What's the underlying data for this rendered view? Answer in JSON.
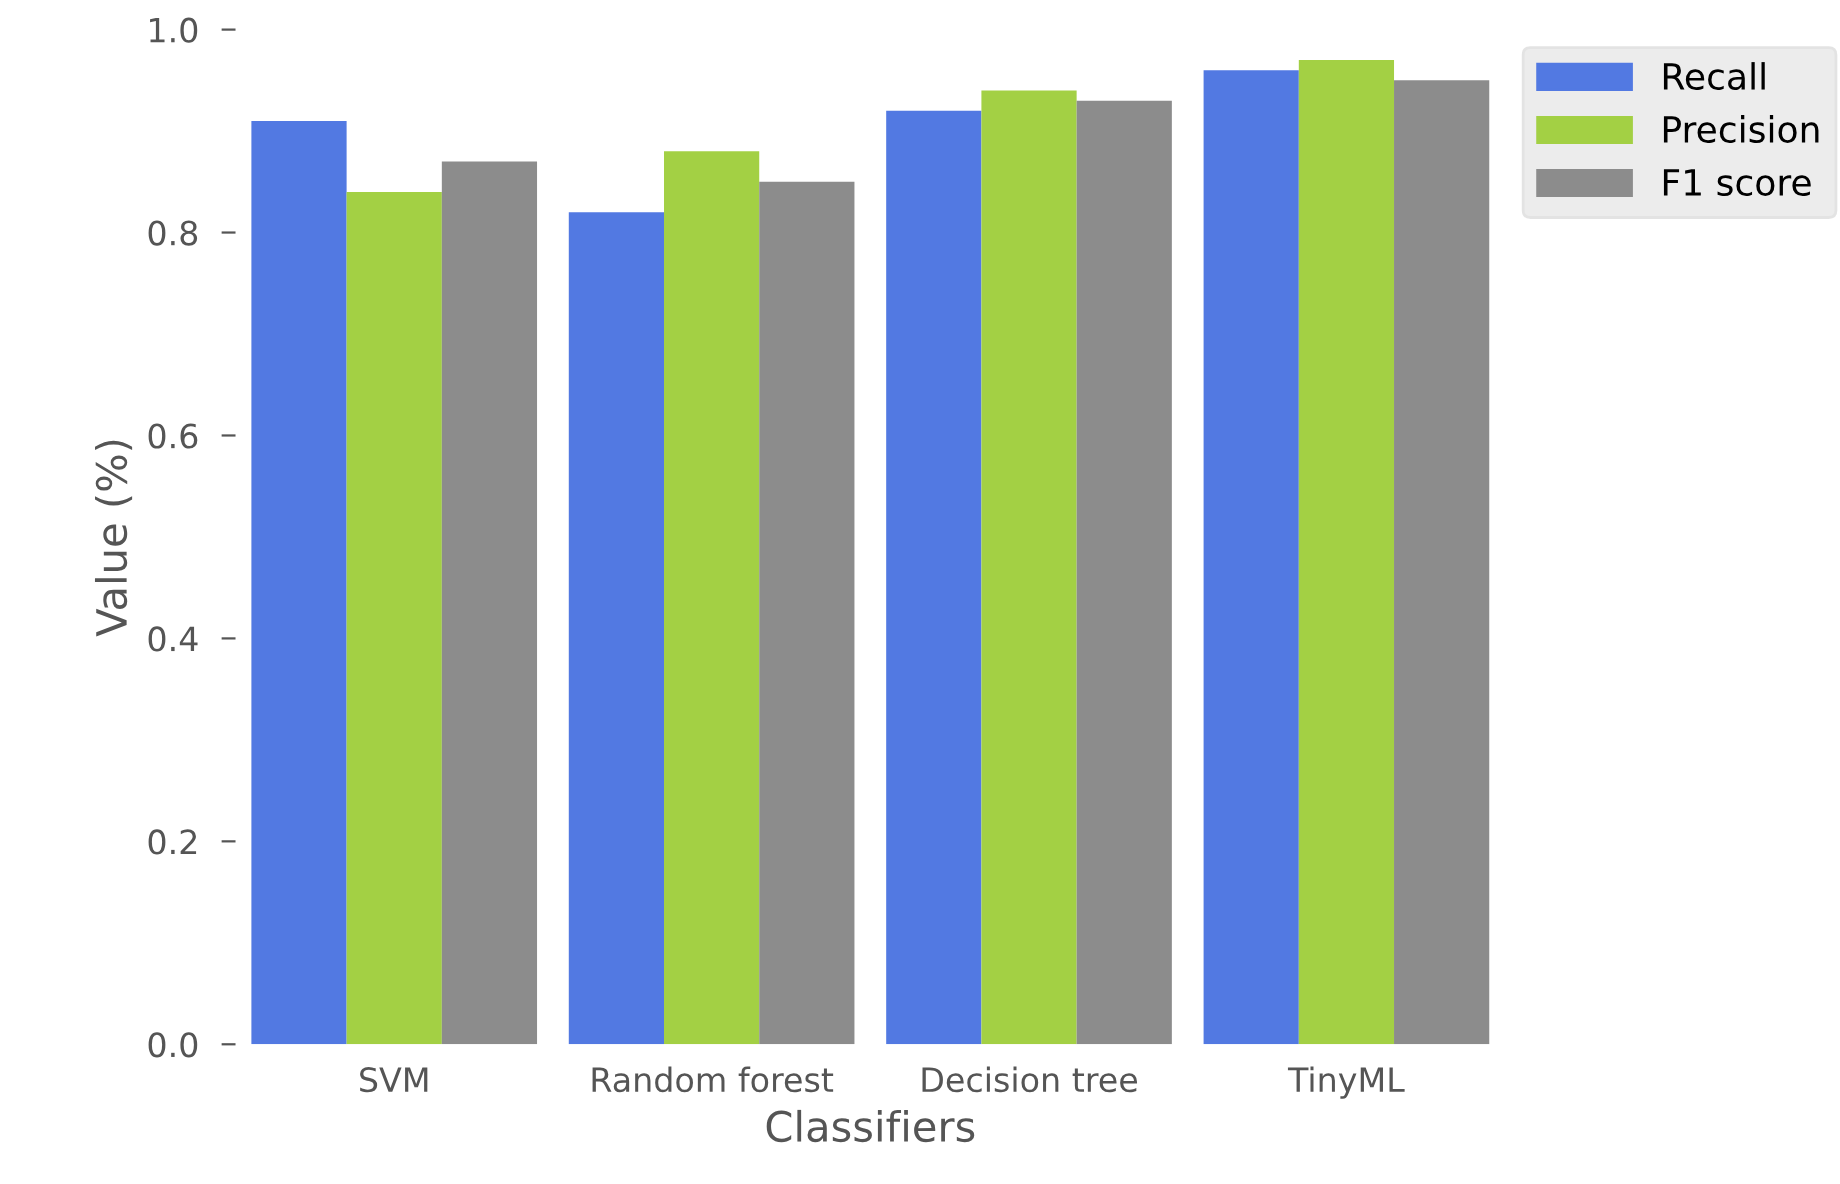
{
  "chart_data": {
    "type": "bar",
    "xlabel": "Classifiers",
    "ylabel": "Value (%)",
    "categories": [
      "SVM",
      "Random forest",
      "Decision tree",
      "TinyML"
    ],
    "series": [
      {
        "name": "Recall",
        "color": "#5279e2",
        "values": [
          0.91,
          0.82,
          0.92,
          0.96
        ]
      },
      {
        "name": "Precision",
        "color": "#a3d044",
        "values": [
          0.84,
          0.88,
          0.94,
          0.97
        ]
      },
      {
        "name": "F1 score",
        "color": "#8c8c8c",
        "values": [
          0.87,
          0.85,
          0.93,
          0.95
        ]
      }
    ],
    "ylim": [
      0,
      1.0
    ],
    "yticks": [
      {
        "value": 0,
        "label": "0.0"
      },
      {
        "value": 0.2,
        "label": "0.2"
      },
      {
        "value": 0.4,
        "label": "0.4"
      },
      {
        "value": 0.6,
        "label": "0.6"
      },
      {
        "value": 0.8,
        "label": "0.8"
      },
      {
        "value": 1.0,
        "label": "1.0"
      }
    ],
    "grid": false,
    "legend": "top right"
  }
}
